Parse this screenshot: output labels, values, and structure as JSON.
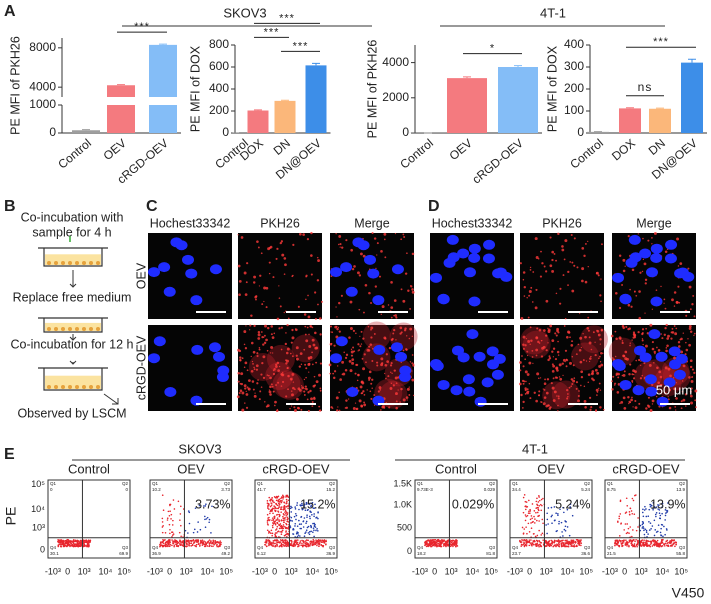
{
  "panel_labels": [
    "A",
    "B",
    "C",
    "D",
    "E"
  ],
  "chart_group_labels": [
    "SKOV3",
    "4T-1"
  ],
  "chart_data": [
    {
      "type": "bar",
      "y_label": "PE MFI of PKH26",
      "categories": [
        "Control",
        "OEV",
        "cRGD-OEV"
      ],
      "values": [
        100,
        4200,
        8300
      ],
      "errors": [
        20,
        60,
        80
      ],
      "colors": [
        "#9e9e9e",
        "#f47a7f",
        "#84bdf7"
      ],
      "ylim": [
        0,
        9000
      ],
      "axis_break": [
        1000,
        3000
      ],
      "yticks": [
        0,
        1000,
        4000,
        8000
      ],
      "significance": [
        {
          "between": [
            "OEV",
            "cRGD-OEV"
          ],
          "label": "***"
        }
      ]
    },
    {
      "type": "bar",
      "y_label": "PE MFI of DOX",
      "categories": [
        "Control",
        "DOX",
        "DN",
        "DN@OEV"
      ],
      "values": [
        3,
        205,
        292,
        615
      ],
      "errors": [
        1,
        5,
        6,
        18
      ],
      "colors": [
        "#9e9e9e",
        "#f47a7f",
        "#fbb77a",
        "#3d8ee8"
      ],
      "ylim": [
        0,
        800
      ],
      "yticks": [
        0,
        200,
        400,
        600,
        800
      ],
      "significance": [
        {
          "between": [
            "DN",
            "DN@OEV"
          ],
          "label": "***"
        },
        {
          "between": [
            "DOX",
            "DN"
          ],
          "label": "***"
        },
        {
          "between": [
            "DOX",
            "DN@OEV"
          ],
          "label": "***"
        }
      ]
    },
    {
      "type": "bar",
      "y_label": "PE MFI of PKH26",
      "categories": [
        "Control",
        "OEV",
        "cRGD-OEV"
      ],
      "values": [
        5,
        3120,
        3750
      ],
      "errors": [
        2,
        70,
        80
      ],
      "colors": [
        "#9e9e9e",
        "#f47a7f",
        "#84bdf7"
      ],
      "ylim": [
        0,
        5000
      ],
      "yticks": [
        0,
        2000,
        4000
      ],
      "significance": [
        {
          "between": [
            "OEV",
            "cRGD-OEV"
          ],
          "label": "*"
        }
      ]
    },
    {
      "type": "bar",
      "y_label": "PE MFI of DOX",
      "categories": [
        "Control",
        "DOX",
        "DN",
        "DN@OEV"
      ],
      "values": [
        5,
        112,
        110,
        320
      ],
      "errors": [
        1,
        3,
        3,
        15
      ],
      "colors": [
        "#9e9e9e",
        "#f47a7f",
        "#fbb77a",
        "#3d8ee8"
      ],
      "ylim": [
        0,
        400
      ],
      "yticks": [
        0,
        100,
        200,
        300,
        400
      ],
      "significance": [
        {
          "between": [
            "DOX",
            "DN"
          ],
          "label": "ns"
        },
        {
          "between": [
            "DOX",
            "DN@OEV"
          ],
          "label": "***"
        }
      ]
    }
  ],
  "schematic": {
    "steps": [
      [
        "Co-incubation with",
        "sample for 4 h"
      ],
      [
        "Replace free medium"
      ],
      [
        "Co-incubation for 12 h"
      ],
      [
        "Observed by LSCM"
      ]
    ]
  },
  "microscopy": [
    {
      "columns": [
        "Hochest33342",
        "PKH26",
        "Merge"
      ],
      "rows": [
        "OEV",
        "cRGD-OEV"
      ]
    },
    {
      "columns": [
        "Hochest33342",
        "PKH26",
        "Merge"
      ],
      "scale_bar": "50 μm"
    }
  ],
  "flow": {
    "group_labels": [
      "SKOV3",
      "4T-1"
    ],
    "y_label": "PE",
    "x_label": "V450",
    "x_ticks": [
      "-10³",
      "0",
      "10³",
      "10⁴",
      "10⁵"
    ],
    "y_ticks": [
      [
        "10⁵",
        "10⁴",
        "10³",
        "0"
      ],
      [
        "1.5K",
        "1.0K",
        "500",
        "0"
      ]
    ],
    "plots": [
      {
        "title": "Control",
        "percent": "",
        "quadrants": [
          [
            "Q1",
            "0"
          ],
          [
            "Q2",
            "0"
          ],
          [
            "Q4",
            "30.1"
          ],
          [
            "Q3",
            "69.9"
          ]
        ]
      },
      {
        "title": "OEV",
        "percent": "3.73%",
        "quadrants": [
          [
            "Q1",
            "10.2"
          ],
          [
            "Q2",
            "3.73"
          ],
          [
            "Q4",
            "36.9"
          ],
          [
            "Q3",
            "49.2"
          ]
        ]
      },
      {
        "title": "cRGD-OEV",
        "percent": "15.2%",
        "quadrants": [
          [
            "Q1",
            "41.7"
          ],
          [
            "Q2",
            "15.2"
          ],
          [
            "Q4",
            "6.12"
          ],
          [
            "Q3",
            "36.9"
          ]
        ]
      },
      {
        "title": "Control",
        "percent": "0.029%",
        "quadrants": [
          [
            "Q1",
            "9.73E-3"
          ],
          [
            "Q2",
            "0.029"
          ],
          [
            "Q4",
            "18.2"
          ],
          [
            "Q3",
            "81.8"
          ]
        ]
      },
      {
        "title": "OEV",
        "percent": "5.24%",
        "quadrants": [
          [
            "Q1",
            "34.4"
          ],
          [
            "Q2",
            "5.24"
          ],
          [
            "Q4",
            "23.7"
          ],
          [
            "Q3",
            "36.6"
          ]
        ]
      },
      {
        "title": "cRGD-OEV",
        "percent": "13.9%",
        "quadrants": [
          [
            "Q1",
            "8.75"
          ],
          [
            "Q2",
            "13.9"
          ],
          [
            "Q4",
            "21.5"
          ],
          [
            "Q3",
            "55.8"
          ]
        ]
      }
    ]
  }
}
